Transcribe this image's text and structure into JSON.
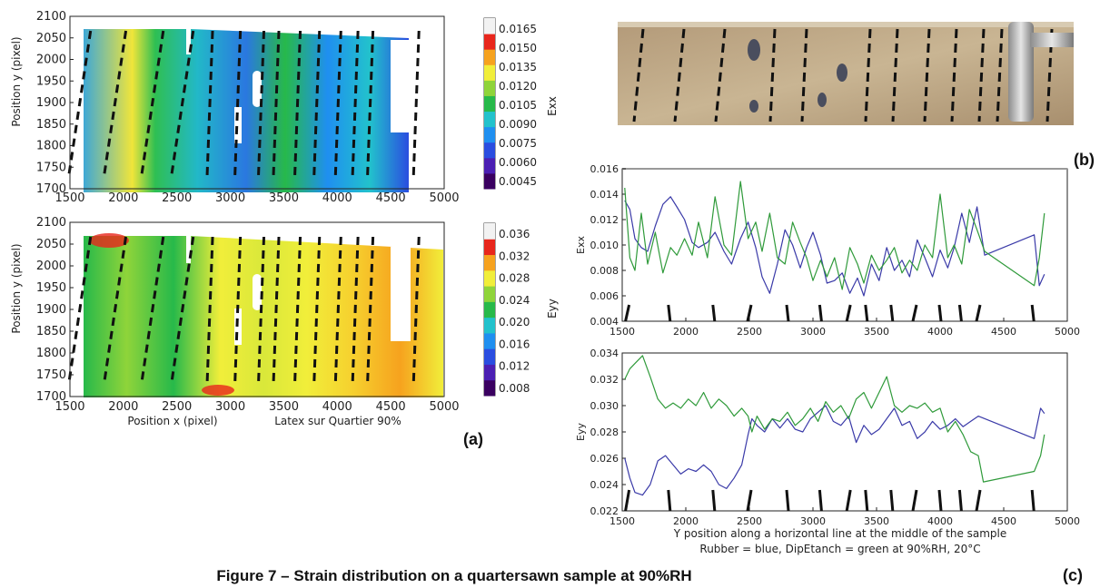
{
  "caption": "Figure 7 – Strain distribution on a quartersawn sample at 90%RH",
  "panel_labels": {
    "a": "(a)",
    "b": "(b)",
    "c": "(c)"
  },
  "photo": {
    "description_hidden": ""
  },
  "chart_data": [
    {
      "id": "map-exx",
      "type": "heatmap",
      "ylabel": "Position y (pixel)",
      "xlim": [
        1500,
        5000
      ],
      "ylim": [
        1700,
        2100
      ],
      "xticks": [
        "1500",
        "2000",
        "2500",
        "3000",
        "3500",
        "4000",
        "4500",
        "5000"
      ],
      "yticks": [
        "1700",
        "1750",
        "1800",
        "1850",
        "1900",
        "1950",
        "2000",
        "2050",
        "2100"
      ],
      "colorbar_label": "Exx",
      "colorbar_ticks": [
        "0.0165",
        "0.0150",
        "0.0135",
        "0.0120",
        "0.0105",
        "0.0090",
        "0.0075",
        "0.0060",
        "0.0045"
      ],
      "colormap": [
        "#3a0060",
        "#4b1fb3",
        "#2a4de0",
        "#1f8ff0",
        "#22c2cc",
        "#27b94a",
        "#8fd43a",
        "#f1ee3a",
        "#f6a21e",
        "#e8261c",
        "#f2f2f2"
      ]
    },
    {
      "id": "map-eyy",
      "type": "heatmap",
      "xlabel": "Position x (pixel)",
      "ylabel": "Position y (pixel)",
      "note": "Latex sur Quartier 90%",
      "xlim": [
        1500,
        5000
      ],
      "ylim": [
        1700,
        2100
      ],
      "xticks": [
        "1500",
        "2000",
        "2500",
        "3000",
        "3500",
        "4000",
        "4500",
        "5000"
      ],
      "yticks": [
        "1700",
        "1750",
        "1800",
        "1850",
        "1900",
        "1950",
        "2000",
        "2050",
        "2100"
      ],
      "colorbar_label": "Eyy",
      "colorbar_ticks": [
        "0.036",
        "0.032",
        "0.028",
        "0.024",
        "0.020",
        "0.016",
        "0.012",
        "0.008"
      ],
      "colormap": [
        "#3a0060",
        "#4b1fb3",
        "#2a4de0",
        "#1f8ff0",
        "#22c2cc",
        "#27b94a",
        "#8fd43a",
        "#f1ee3a",
        "#f6a21e",
        "#e8261c",
        "#f2f2f2"
      ]
    },
    {
      "id": "line-exx",
      "type": "line",
      "ylabel": "Exx",
      "xlim": [
        1500,
        5000
      ],
      "ylim": [
        0.004,
        0.016
      ],
      "xticks": [
        "1500",
        "2000",
        "2500",
        "3000",
        "3500",
        "4000",
        "4500",
        "5000"
      ],
      "yticks": [
        "0.004",
        "0.006",
        "0.008",
        "0.010",
        "0.012",
        "0.014",
        "0.016"
      ],
      "marks_x": [
        1540,
        1870,
        2220,
        2500,
        2800,
        3060,
        3280,
        3420,
        3620,
        3800,
        4000,
        4160,
        4300,
        4730
      ],
      "series": [
        {
          "color": "#3a3aa8",
          "x": [
            1520,
            1560,
            1600,
            1650,
            1700,
            1760,
            1820,
            1880,
            1930,
            1990,
            2050,
            2100,
            2170,
            2230,
            2300,
            2360,
            2430,
            2490,
            2550,
            2600,
            2660,
            2720,
            2780,
            2840,
            2900,
            2950,
            3000,
            3060,
            3110,
            3170,
            3230,
            3290,
            3350,
            3400,
            3460,
            3520,
            3580,
            3640,
            3700,
            3760,
            3820,
            3880,
            3940,
            4000,
            4060,
            4110,
            4170,
            4230,
            4290,
            4350,
            4740,
            4780,
            4820
          ],
          "y": [
            0.0135,
            0.0128,
            0.0105,
            0.0098,
            0.0095,
            0.0115,
            0.0132,
            0.0138,
            0.013,
            0.012,
            0.0102,
            0.0098,
            0.0102,
            0.011,
            0.0095,
            0.0085,
            0.0105,
            0.0118,
            0.0098,
            0.0075,
            0.0062,
            0.0085,
            0.0112,
            0.01,
            0.0082,
            0.0098,
            0.011,
            0.0092,
            0.007,
            0.0072,
            0.0078,
            0.0062,
            0.0074,
            0.006,
            0.0085,
            0.0072,
            0.0098,
            0.008,
            0.0088,
            0.0075,
            0.0104,
            0.009,
            0.0075,
            0.0096,
            0.0082,
            0.0098,
            0.0125,
            0.0102,
            0.013,
            0.0092,
            0.0108,
            0.0068,
            0.0077
          ]
        },
        {
          "color": "#2f9a3a",
          "x": [
            1520,
            1560,
            1600,
            1650,
            1700,
            1760,
            1820,
            1880,
            1930,
            1990,
            2050,
            2100,
            2170,
            2230,
            2300,
            2360,
            2430,
            2490,
            2550,
            2600,
            2660,
            2720,
            2780,
            2840,
            2900,
            2950,
            3000,
            3060,
            3110,
            3170,
            3230,
            3290,
            3350,
            3400,
            3460,
            3520,
            3580,
            3640,
            3700,
            3760,
            3820,
            3880,
            3940,
            4000,
            4060,
            4110,
            4170,
            4230,
            4290,
            4350,
            4740,
            4780,
            4820
          ],
          "y": [
            0.0145,
            0.009,
            0.008,
            0.0125,
            0.0085,
            0.011,
            0.0078,
            0.0098,
            0.0092,
            0.0105,
            0.0092,
            0.0118,
            0.009,
            0.0138,
            0.01,
            0.0092,
            0.015,
            0.0105,
            0.0118,
            0.0095,
            0.0125,
            0.009,
            0.0085,
            0.0118,
            0.0102,
            0.009,
            0.0072,
            0.0088,
            0.0075,
            0.009,
            0.0065,
            0.0098,
            0.0085,
            0.007,
            0.0092,
            0.008,
            0.0088,
            0.0098,
            0.0078,
            0.0088,
            0.008,
            0.01,
            0.009,
            0.014,
            0.009,
            0.01,
            0.0085,
            0.0128,
            0.0112,
            0.0095,
            0.0068,
            0.009,
            0.0125
          ]
        }
      ]
    },
    {
      "id": "line-eyy",
      "type": "line",
      "ylabel": "Eyy",
      "xlabel": "Y position along a horizontal line at the middle of the sample",
      "legend_text": "Rubber = blue, DipEtanch = green  at 90%RH, 20°C",
      "xlim": [
        1500,
        5000
      ],
      "ylim": [
        0.022,
        0.034
      ],
      "xticks": [
        "1500",
        "2000",
        "2500",
        "3000",
        "3500",
        "4000",
        "4500",
        "5000"
      ],
      "yticks": [
        "0.022",
        "0.024",
        "0.026",
        "0.028",
        "0.030",
        "0.032",
        "0.034"
      ],
      "marks_x": [
        1540,
        1870,
        2220,
        2500,
        2800,
        3060,
        3280,
        3420,
        3620,
        3800,
        4000,
        4160,
        4300,
        4730
      ],
      "series": [
        {
          "color": "#3a3aa8",
          "x": [
            1520,
            1560,
            1600,
            1660,
            1720,
            1780,
            1840,
            1900,
            1960,
            2020,
            2080,
            2140,
            2200,
            2260,
            2320,
            2380,
            2440,
            2490,
            2520,
            2560,
            2620,
            2680,
            2740,
            2800,
            2860,
            2920,
            2980,
            3040,
            3100,
            3160,
            3220,
            3280,
            3340,
            3400,
            3460,
            3520,
            3580,
            3640,
            3700,
            3760,
            3820,
            3880,
            3940,
            4000,
            4060,
            4120,
            4180,
            4240,
            4300,
            4740,
            4790,
            4820
          ],
          "y": [
            0.026,
            0.0245,
            0.0234,
            0.0232,
            0.024,
            0.0258,
            0.0262,
            0.0255,
            0.0248,
            0.0252,
            0.025,
            0.0255,
            0.025,
            0.024,
            0.0237,
            0.0245,
            0.0255,
            0.0278,
            0.029,
            0.0285,
            0.028,
            0.029,
            0.0283,
            0.029,
            0.0282,
            0.028,
            0.029,
            0.0295,
            0.03,
            0.0288,
            0.0285,
            0.0292,
            0.0272,
            0.0285,
            0.0278,
            0.0282,
            0.029,
            0.0298,
            0.0285,
            0.0288,
            0.0275,
            0.028,
            0.0288,
            0.0282,
            0.0285,
            0.029,
            0.0284,
            0.0288,
            0.0292,
            0.0275,
            0.0298,
            0.0294
          ]
        },
        {
          "color": "#2f9a3a",
          "x": [
            1520,
            1560,
            1600,
            1660,
            1720,
            1780,
            1840,
            1900,
            1960,
            2020,
            2080,
            2140,
            2200,
            2260,
            2320,
            2380,
            2440,
            2490,
            2520,
            2560,
            2620,
            2680,
            2740,
            2800,
            2860,
            2920,
            2980,
            3040,
            3100,
            3160,
            3220,
            3280,
            3340,
            3400,
            3460,
            3520,
            3580,
            3640,
            3700,
            3760,
            3820,
            3880,
            3940,
            4000,
            4060,
            4120,
            4180,
            4240,
            4300,
            4340,
            4740,
            4790,
            4820
          ],
          "y": [
            0.032,
            0.0328,
            0.0332,
            0.0338,
            0.0322,
            0.0305,
            0.0298,
            0.0302,
            0.0298,
            0.0305,
            0.03,
            0.031,
            0.0298,
            0.0305,
            0.03,
            0.0292,
            0.0298,
            0.0292,
            0.028,
            0.0292,
            0.0282,
            0.029,
            0.0288,
            0.0295,
            0.0285,
            0.029,
            0.0298,
            0.0288,
            0.0303,
            0.0295,
            0.03,
            0.029,
            0.0305,
            0.031,
            0.0298,
            0.031,
            0.0322,
            0.03,
            0.0295,
            0.03,
            0.0298,
            0.0302,
            0.0295,
            0.0298,
            0.028,
            0.0288,
            0.0278,
            0.0265,
            0.0262,
            0.0242,
            0.025,
            0.0262,
            0.0278
          ]
        }
      ]
    }
  ]
}
